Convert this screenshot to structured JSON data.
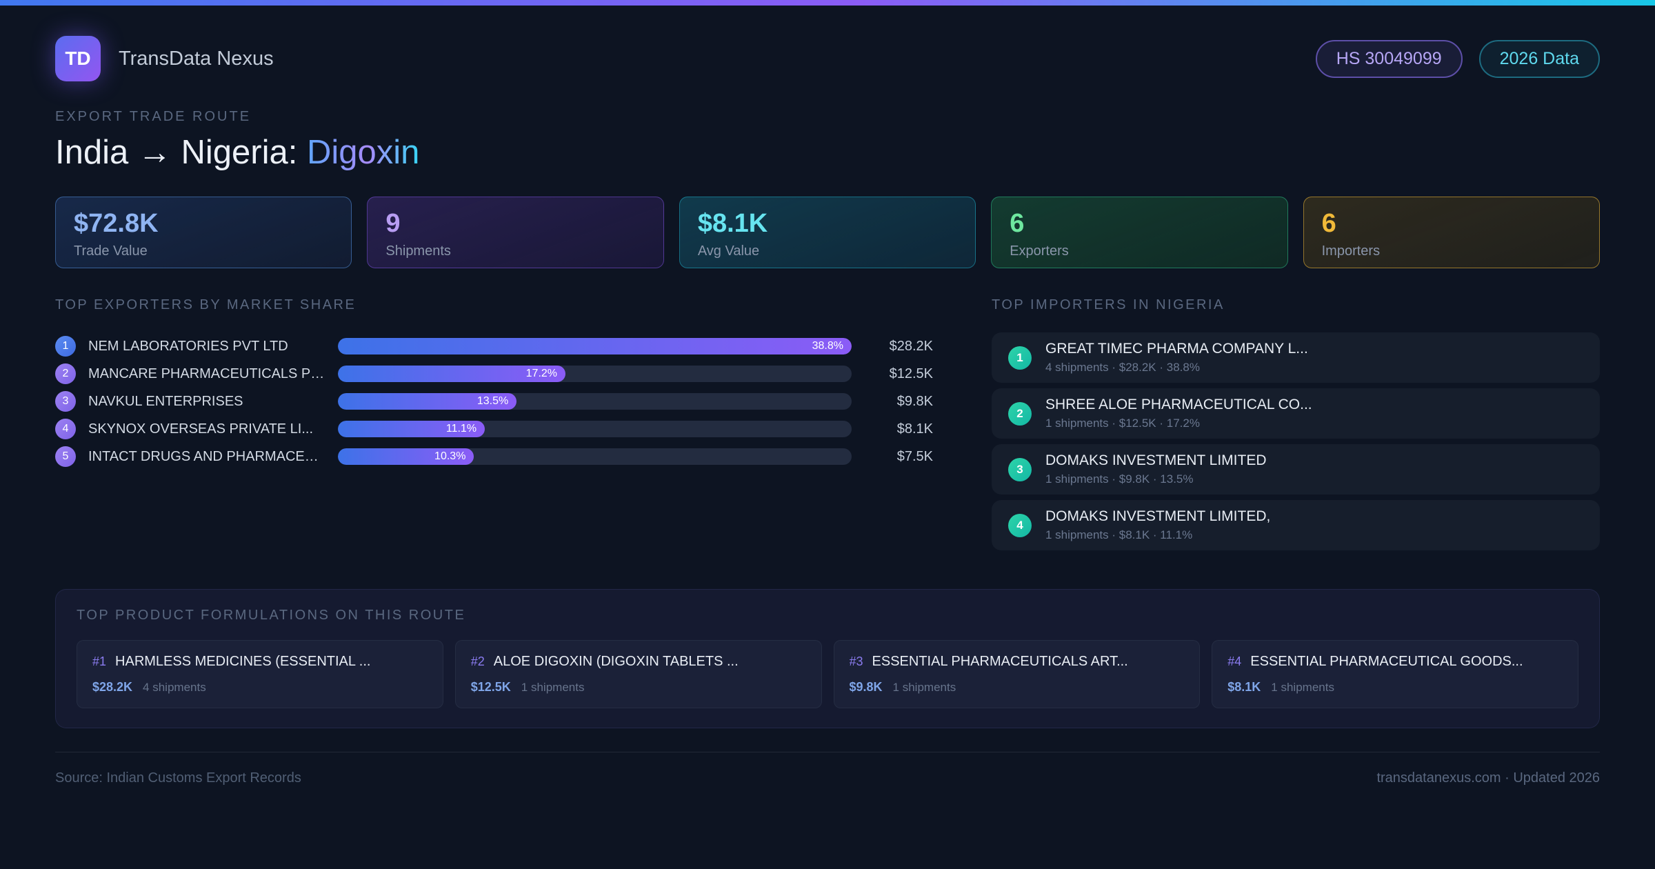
{
  "header": {
    "logo_text": "TD",
    "app_name": "TransData Nexus",
    "hs_badge": "HS 30049099",
    "year_badge": "2026 Data"
  },
  "hero": {
    "eyebrow": "EXPORT TRADE ROUTE",
    "title_main": "India → Nigeria:",
    "title_highlight": "Digoxin"
  },
  "stats": [
    {
      "value": "$72.8K",
      "label": "Trade Value",
      "accent": "#8fb4f2"
    },
    {
      "value": "9",
      "label": "Shipments",
      "accent": "#b89df2"
    },
    {
      "value": "$8.1K",
      "label": "Avg Value",
      "accent": "#67e4f0"
    },
    {
      "value": "6",
      "label": "Exporters",
      "accent": "#6ee79f"
    },
    {
      "value": "6",
      "label": "Importers",
      "accent": "#f0b939"
    }
  ],
  "exporters": {
    "title": "TOP EXPORTERS BY MARKET SHARE",
    "rows": [
      {
        "rank": "1",
        "name": "NEM LABORATORIES PVT LTD",
        "share": "38.8%",
        "value": "$28.2K",
        "bar_pct": 100
      },
      {
        "rank": "2",
        "name": "MANCARE PHARMACEUTICALS PR...",
        "share": "17.2%",
        "value": "$12.5K",
        "bar_pct": 44.3
      },
      {
        "rank": "3",
        "name": "NAVKUL ENTERPRISES",
        "share": "13.5%",
        "value": "$9.8K",
        "bar_pct": 34.8
      },
      {
        "rank": "4",
        "name": "SKYNOX OVERSEAS PRIVATE LI...",
        "share": "11.1%",
        "value": "$8.1K",
        "bar_pct": 28.6
      },
      {
        "rank": "5",
        "name": "INTACT DRUGS AND PHARMACEU...",
        "share": "10.3%",
        "value": "$7.5K",
        "bar_pct": 26.5
      }
    ]
  },
  "importers": {
    "title": "TOP IMPORTERS IN NIGERIA",
    "rows": [
      {
        "rank": "1",
        "name": "GREAT TIMEC PHARMA COMPANY L...",
        "meta": "4 shipments · $28.2K · 38.8%"
      },
      {
        "rank": "2",
        "name": "SHREE ALOE PHARMACEUTICAL CO...",
        "meta": "1 shipments · $12.5K · 17.2%"
      },
      {
        "rank": "3",
        "name": "DOMAKS INVESTMENT LIMITED",
        "meta": "1 shipments · $9.8K · 13.5%"
      },
      {
        "rank": "4",
        "name": "DOMAKS INVESTMENT LIMITED,",
        "meta": "1 shipments · $8.1K · 11.1%"
      }
    ]
  },
  "formulations": {
    "title": "TOP PRODUCT FORMULATIONS ON THIS ROUTE",
    "cards": [
      {
        "rank": "#1",
        "name": "HARMLESS MEDICINES (ESSENTIAL ...",
        "value": "$28.2K",
        "shipments": "4 shipments"
      },
      {
        "rank": "#2",
        "name": "ALOE DIGOXIN (DIGOXIN TABLETS ...",
        "value": "$12.5K",
        "shipments": "1 shipments"
      },
      {
        "rank": "#3",
        "name": "ESSENTIAL PHARMACEUTICALS ART...",
        "value": "$9.8K",
        "shipments": "1 shipments"
      },
      {
        "rank": "#4",
        "name": "ESSENTIAL PHARMACEUTICAL GOODS...",
        "value": "$8.1K",
        "shipments": "1 shipments"
      }
    ]
  },
  "footer": {
    "source": "Source: Indian Customs Export Records",
    "site": "transdatanexus.com · Updated 2026"
  },
  "chart_data": {
    "type": "bar",
    "orientation": "horizontal",
    "title": "TOP EXPORTERS BY MARKET SHARE",
    "categories": [
      "NEM LABORATORIES PVT LTD",
      "MANCARE PHARMACEUTICALS PR...",
      "NAVKUL ENTERPRISES",
      "SKYNOX OVERSEAS PRIVATE LI...",
      "INTACT DRUGS AND PHARMACEU..."
    ],
    "values": [
      38.8,
      17.2,
      13.5,
      11.1,
      10.3
    ],
    "value_labels": [
      "$28.2K",
      "$12.5K",
      "$9.8K",
      "$8.1K",
      "$7.5K"
    ],
    "ylabel": "market share %",
    "xlim": [
      0,
      38.8
    ],
    "note": "bars normalized to the maximum share (38.8% renders full width)"
  }
}
